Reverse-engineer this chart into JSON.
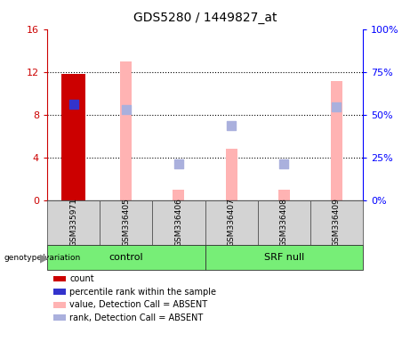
{
  "title": "GDS5280 / 1449827_at",
  "samples": [
    "GSM335971",
    "GSM336405",
    "GSM336406",
    "GSM336407",
    "GSM336408",
    "GSM336409"
  ],
  "left_ylim": [
    0,
    16
  ],
  "right_ylim": [
    0,
    100
  ],
  "left_yticks": [
    0,
    4,
    8,
    12,
    16
  ],
  "left_yticklabels": [
    "0",
    "4",
    "8",
    "12",
    "16"
  ],
  "right_yticks": [
    0,
    25,
    50,
    75,
    100
  ],
  "right_yticklabels": [
    "0%",
    "25%",
    "50%",
    "75%",
    "100%"
  ],
  "count_bars": {
    "GSM335971": 11.8,
    "GSM336405": null,
    "GSM336406": null,
    "GSM336407": null,
    "GSM336408": null,
    "GSM336409": null
  },
  "percentile_rank_dots": {
    "GSM335971": 9.0,
    "GSM336405": null,
    "GSM336406": null,
    "GSM336407": null,
    "GSM336408": null,
    "GSM336409": null
  },
  "absent_value_bars": {
    "GSM335971": null,
    "GSM336405": 13.0,
    "GSM336406": 1.0,
    "GSM336407": 4.8,
    "GSM336408": 1.0,
    "GSM336409": 11.1
  },
  "absent_rank_dots": {
    "GSM335971": null,
    "GSM336405": 8.5,
    "GSM336406": 3.4,
    "GSM336407": 7.0,
    "GSM336408": 3.4,
    "GSM336409": 8.7
  },
  "count_color": "#cc0000",
  "percentile_color": "#3333cc",
  "absent_value_color": "#ffb3b3",
  "absent_rank_color": "#aab0dd",
  "bar_width": 0.45,
  "absent_bar_width": 0.22,
  "grid_ticks": [
    4,
    8,
    12
  ],
  "groups": [
    {
      "name": "control",
      "start": 0,
      "end": 2,
      "color": "#77ee77"
    },
    {
      "name": "SRF null",
      "start": 3,
      "end": 5,
      "color": "#77ee77"
    }
  ],
  "legend_items": [
    {
      "color": "#cc0000",
      "label": "count"
    },
    {
      "color": "#3333cc",
      "label": "percentile rank within the sample"
    },
    {
      "color": "#ffb3b3",
      "label": "value, Detection Call = ABSENT"
    },
    {
      "color": "#aab0dd",
      "label": "rank, Detection Call = ABSENT"
    }
  ]
}
